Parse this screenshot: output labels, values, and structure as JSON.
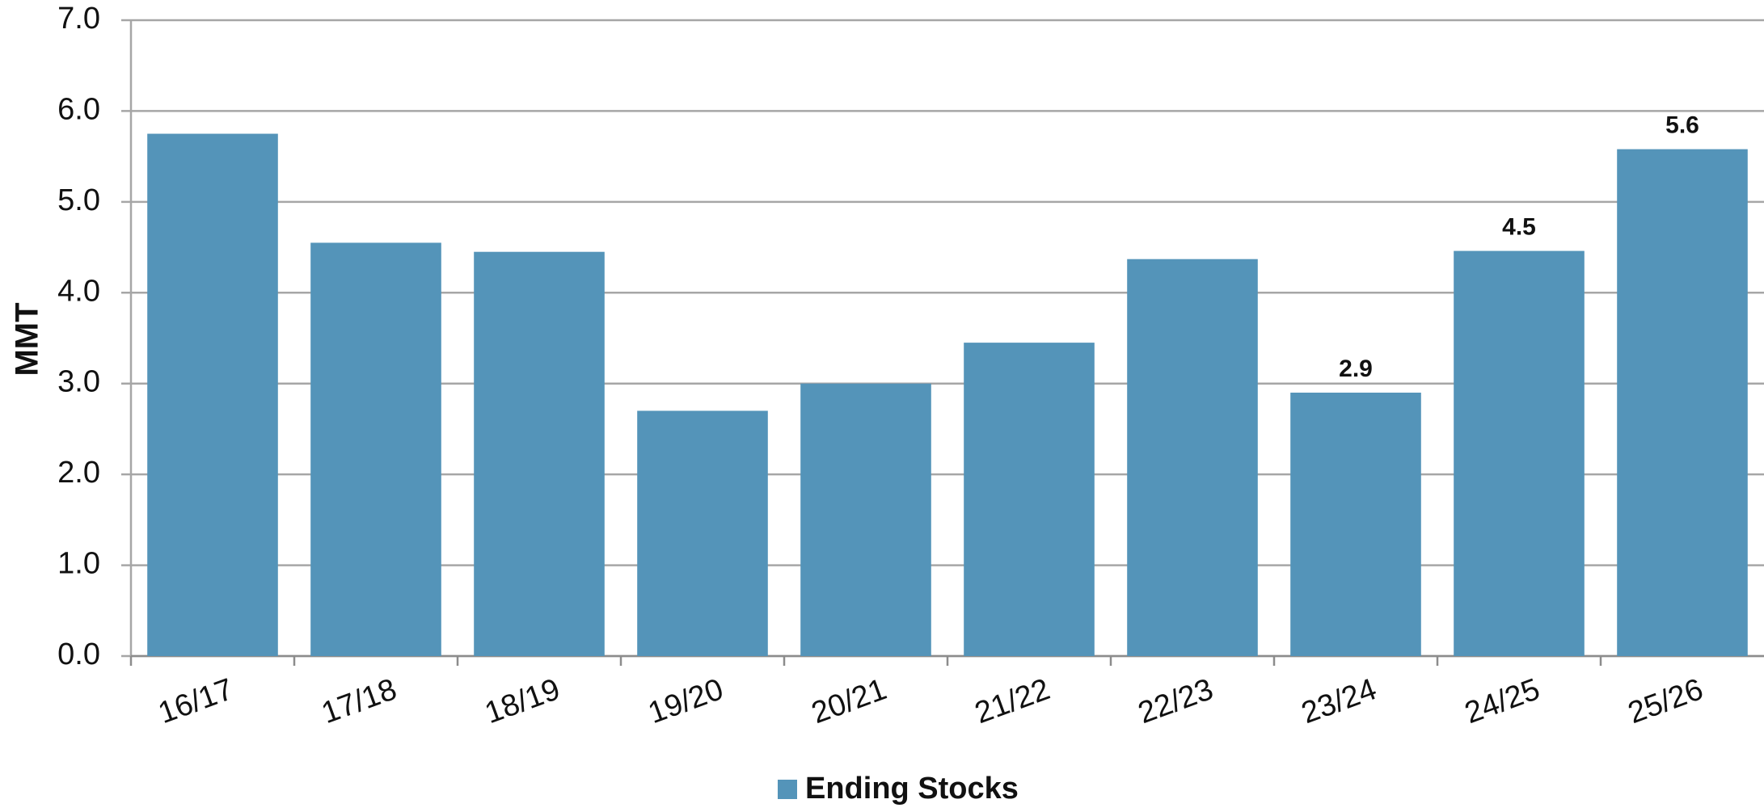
{
  "chart_data": {
    "type": "bar",
    "ylabel": "MMT",
    "categories": [
      "16/17",
      "17/18",
      "18/19",
      "19/20",
      "20/21",
      "21/22",
      "22/23",
      "23/24",
      "24/25",
      "25/26"
    ],
    "series": [
      {
        "name": "Ending Stocks",
        "color": "#5494b9",
        "values": [
          5.75,
          4.55,
          4.45,
          2.7,
          3.0,
          3.45,
          4.37,
          2.9,
          4.46,
          5.58
        ],
        "value_labels": [
          null,
          null,
          null,
          null,
          null,
          null,
          null,
          "2.9",
          "4.5",
          "5.6"
        ]
      }
    ],
    "ylim": [
      0,
      7
    ],
    "yticks": [
      {
        "value": 0,
        "label": "0.0"
      },
      {
        "value": 1,
        "label": "1.0"
      },
      {
        "value": 2,
        "label": "2.0"
      },
      {
        "value": 3,
        "label": "3.0"
      },
      {
        "value": 4,
        "label": "4.0"
      },
      {
        "value": 5,
        "label": "5.0"
      },
      {
        "value": 6,
        "label": "6.0"
      },
      {
        "value": 7,
        "label": "7.0"
      }
    ],
    "grid": true,
    "legend": "bottom"
  }
}
